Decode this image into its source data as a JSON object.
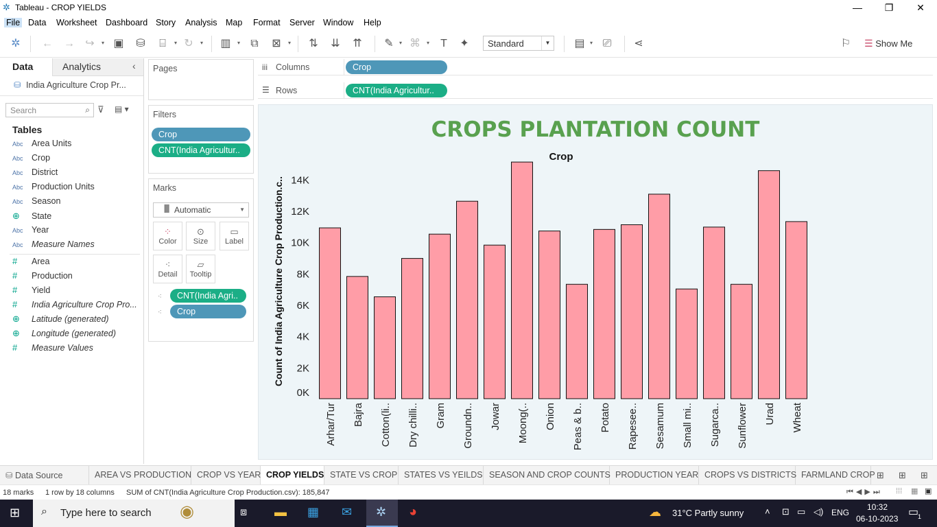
{
  "window": {
    "title": "Tableau - CROP YIELDS"
  },
  "menu": [
    "File",
    "Data",
    "Worksheet",
    "Dashboard",
    "Story",
    "Analysis",
    "Map",
    "Format",
    "Server",
    "Window",
    "Help"
  ],
  "toolbar": {
    "fit_select": "Standard",
    "show_me": "Show Me"
  },
  "data_pane": {
    "tab_data": "Data",
    "tab_analytics": "Analytics",
    "datasource": "India Agriculture Crop Pr...",
    "search_placeholder": "Search",
    "tables_heading": "Tables",
    "dimensions": [
      {
        "type": "Abc",
        "name": "Area Units"
      },
      {
        "type": "Abc",
        "name": "Crop"
      },
      {
        "type": "Abc",
        "name": "District"
      },
      {
        "type": "Abc",
        "name": "Production Units"
      },
      {
        "type": "Abc",
        "name": "Season"
      },
      {
        "type": "globe",
        "name": "State"
      },
      {
        "type": "Abc",
        "name": "Year"
      },
      {
        "type": "Abc",
        "name": "Measure Names"
      }
    ],
    "measures": [
      {
        "type": "#",
        "name": "Area"
      },
      {
        "type": "#",
        "name": "Production"
      },
      {
        "type": "#",
        "name": "Yield"
      },
      {
        "type": "#",
        "name": "India Agriculture Crop Pro..."
      },
      {
        "type": "globe",
        "name": "Latitude (generated)"
      },
      {
        "type": "globe",
        "name": "Longitude (generated)"
      },
      {
        "type": "#",
        "name": "Measure Values"
      }
    ]
  },
  "shelves": {
    "pages": "Pages",
    "filters": "Filters",
    "filter_pills": [
      "Crop",
      "CNT(India Agricultur.."
    ],
    "marks": "Marks",
    "mark_type": "Automatic",
    "mark_buttons": [
      "Color",
      "Size",
      "Label",
      "Detail",
      "Tooltip"
    ],
    "mark_pills": [
      "CNT(India Agri..",
      "Crop"
    ],
    "columns_label": "Columns",
    "columns_pill": "Crop",
    "rows_label": "Rows",
    "rows_pill": "CNT(India Agricultur.."
  },
  "chart_data": {
    "type": "bar",
    "title": "CROPS PLANTATION COUNT",
    "header": "Crop",
    "ylabel": "Count of India Agriculture Crop Production.c..",
    "ylim": [
      0,
      15500
    ],
    "yticks": [
      "0K",
      "2K",
      "4K",
      "6K",
      "8K",
      "10K",
      "12K",
      "14K"
    ],
    "categories": [
      "Arhar/Tur",
      "Bajra",
      "Cotton(li..",
      "Dry chilli..",
      "Gram",
      "Groundn..",
      "Jowar",
      "Moong(..",
      "Onion",
      "Peas & b..",
      "Potato",
      "Rapesee..",
      "Sesamum",
      "Small mi..",
      "Sugarca..",
      "Sunflower",
      "Urad",
      "Wheat"
    ],
    "values": [
      10900,
      7800,
      6500,
      8950,
      10500,
      12600,
      9800,
      15100,
      10700,
      7300,
      10800,
      11100,
      13050,
      7000,
      10950,
      7300,
      14550,
      11300
    ],
    "bar_color": "#ff9da7",
    "title_color": "#59a14f"
  },
  "sheet_tabs": [
    "Data Source",
    "AREA VS PRODUCTION",
    "CROP VS YEAR",
    "CROP YIELDS",
    "STATE VS CROP",
    "STATES VS YEILDS",
    "SEASON AND CROP COUNTS",
    "PRODUCTION YEAR",
    "CROPS VS DISTRICTS",
    "FARMLAND CROP"
  ],
  "active_tab": "CROP YIELDS",
  "status": {
    "marks": "18 marks",
    "dims": "1 row by 18 columns",
    "sum": "SUM of CNT(India Agriculture Crop Production.csv): 185,847"
  },
  "taskbar": {
    "search_placeholder": "Type here to search",
    "weather": "31°C  Partly sunny",
    "lang": "ENG",
    "time": "10:32",
    "date": "06-10-2023",
    "notif_count": "1"
  }
}
